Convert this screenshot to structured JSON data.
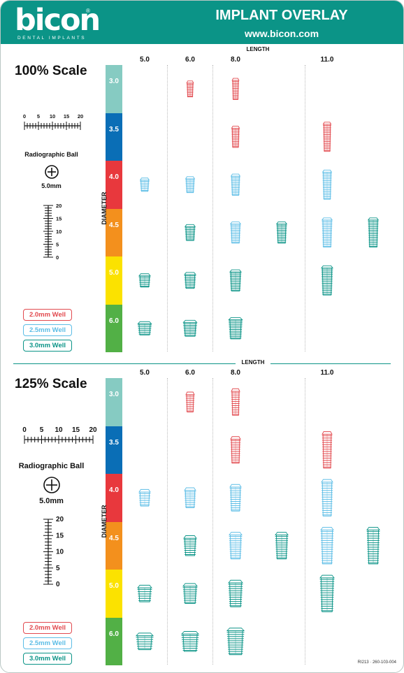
{
  "header": {
    "logo": "bicon",
    "logo_sub": "DENTAL IMPLANTS",
    "logo_reg": "®",
    "title": "IMPLANT OVERLAY",
    "website": "www.bicon.com"
  },
  "sections": [
    {
      "scale_title": "100% Scale",
      "length_title": "LENGTH",
      "length_headers": [
        "5.0",
        "6.0",
        "8.0",
        "11.0"
      ],
      "diameter_axis": "DIAMETER",
      "diameters": [
        "3.0",
        "3.5",
        "4.0",
        "4.5",
        "5.0",
        "6.0"
      ],
      "ruler_h_labels": [
        "0",
        "5",
        "10",
        "15",
        "20"
      ],
      "ruler_v_labels": [
        "20",
        "15",
        "10",
        "5",
        "0"
      ],
      "ball_label": "Radiographic Ball",
      "ball_size": "5.0mm",
      "legend": [
        "2.0mm Well",
        "2.5mm Well",
        "3.0mm Well"
      ]
    },
    {
      "scale_title": "125% Scale",
      "length_title": "LENGTH",
      "length_headers": [
        "5.0",
        "6.0",
        "8.0",
        "11.0"
      ],
      "diameter_axis": "DIAMETER",
      "diameters": [
        "3.0",
        "3.5",
        "4.0",
        "4.5",
        "5.0",
        "6.0"
      ],
      "ruler_h_labels": [
        "0",
        "5",
        "10",
        "15",
        "20"
      ],
      "ruler_v_labels": [
        "20",
        "15",
        "10",
        "5",
        "0"
      ],
      "ball_label": "Radiographic Ball",
      "ball_size": "5.0mm",
      "legend": [
        "2.0mm Well",
        "2.5mm Well",
        "3.0mm Well"
      ]
    }
  ],
  "diameter_colors": [
    "#86cbc2",
    "#0a6eb6",
    "#e8383d",
    "#f3901d",
    "#fbe200",
    "#52b046"
  ],
  "well_colors": {
    "2.0": "#e24a4f",
    "2.5": "#5cbde6",
    "3.0": "#0b9487"
  },
  "implants": [
    {
      "d": "3.0",
      "l": "6.0",
      "well": "2.0"
    },
    {
      "d": "3.0",
      "l": "8.0",
      "well": "2.0"
    },
    {
      "d": "3.5",
      "l": "8.0",
      "well": "2.0"
    },
    {
      "d": "3.5",
      "l": "11.0",
      "well": "2.0"
    },
    {
      "d": "4.0",
      "l": "5.0",
      "well": "2.5"
    },
    {
      "d": "4.0",
      "l": "6.0",
      "well": "2.5"
    },
    {
      "d": "4.0",
      "l": "8.0",
      "well": "2.5"
    },
    {
      "d": "4.0",
      "l": "11.0",
      "well": "2.5"
    },
    {
      "d": "4.5",
      "l": "6.0",
      "well": "3.0"
    },
    {
      "d": "4.5",
      "l": "8.0",
      "well": "2.5"
    },
    {
      "d": "4.5",
      "l": "8.0",
      "well": "3.0"
    },
    {
      "d": "4.5",
      "l": "11.0",
      "well": "2.5"
    },
    {
      "d": "4.5",
      "l": "11.0",
      "well": "3.0"
    },
    {
      "d": "5.0",
      "l": "5.0",
      "well": "3.0"
    },
    {
      "d": "5.0",
      "l": "6.0",
      "well": "3.0"
    },
    {
      "d": "5.0",
      "l": "8.0",
      "well": "3.0"
    },
    {
      "d": "5.0",
      "l": "11.0",
      "well": "3.0"
    },
    {
      "d": "6.0",
      "l": "5.0",
      "well": "3.0"
    },
    {
      "d": "6.0",
      "l": "6.0",
      "well": "3.0"
    },
    {
      "d": "6.0",
      "l": "8.0",
      "well": "3.0"
    }
  ],
  "part_code": "RI213 · 260-103-004"
}
